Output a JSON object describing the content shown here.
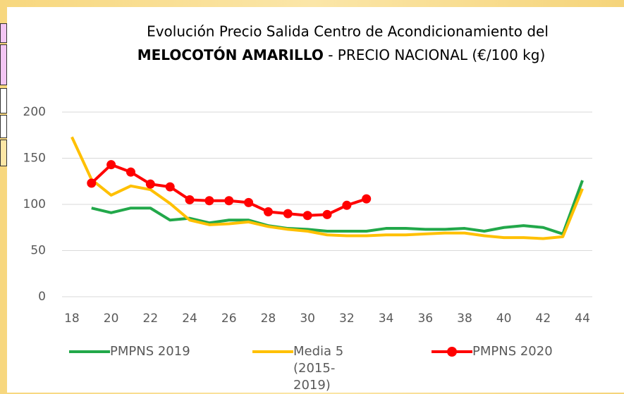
{
  "chart_data": {
    "type": "line",
    "title": "Evolución Precio Salida Centro de Acondicionamiento del",
    "title_bold": "MELOCOTÓN AMARILLO",
    "title_rest": "- PRECIO NACIONAL (€/100 kg)",
    "x": [
      18,
      19,
      20,
      21,
      22,
      23,
      24,
      25,
      26,
      27,
      28,
      29,
      30,
      31,
      32,
      33,
      34,
      35,
      36,
      37,
      38,
      39,
      40,
      41,
      42,
      43,
      44
    ],
    "series": [
      {
        "name": "PMPNS 2019",
        "color": "#22a84a",
        "markers": false,
        "values": [
          null,
          96,
          91,
          96,
          96,
          83,
          85,
          80,
          83,
          83,
          77,
          74,
          73,
          71,
          71,
          71,
          74,
          74,
          73,
          73,
          74,
          71,
          75,
          77,
          75,
          68,
          126
        ]
      },
      {
        "name": "Media 5 (2015-2019)",
        "color": "#ffc000",
        "markers": false,
        "values": [
          173,
          127,
          110,
          120,
          116,
          101,
          83,
          78,
          79,
          81,
          76,
          73,
          71,
          67,
          66,
          66,
          67,
          67,
          68,
          69,
          69,
          66,
          64,
          64,
          63,
          65,
          117
        ]
      },
      {
        "name": "PMPNS 2020",
        "color": "#ff0000",
        "markers": true,
        "values": [
          null,
          123,
          143,
          135,
          122,
          119,
          105,
          104,
          104,
          102,
          92,
          90,
          88,
          89,
          99,
          106,
          null,
          null,
          null,
          null,
          null,
          null,
          null,
          null,
          null,
          null,
          null
        ]
      }
    ],
    "xlim": [
      17.5,
      44.5
    ],
    "xticks": [
      18,
      20,
      22,
      24,
      26,
      28,
      30,
      32,
      34,
      36,
      38,
      40,
      42,
      44
    ],
    "ylim": [
      0,
      200
    ],
    "yticks": [
      0,
      50,
      100,
      150,
      200
    ],
    "grid": true,
    "legend": "bottom"
  }
}
